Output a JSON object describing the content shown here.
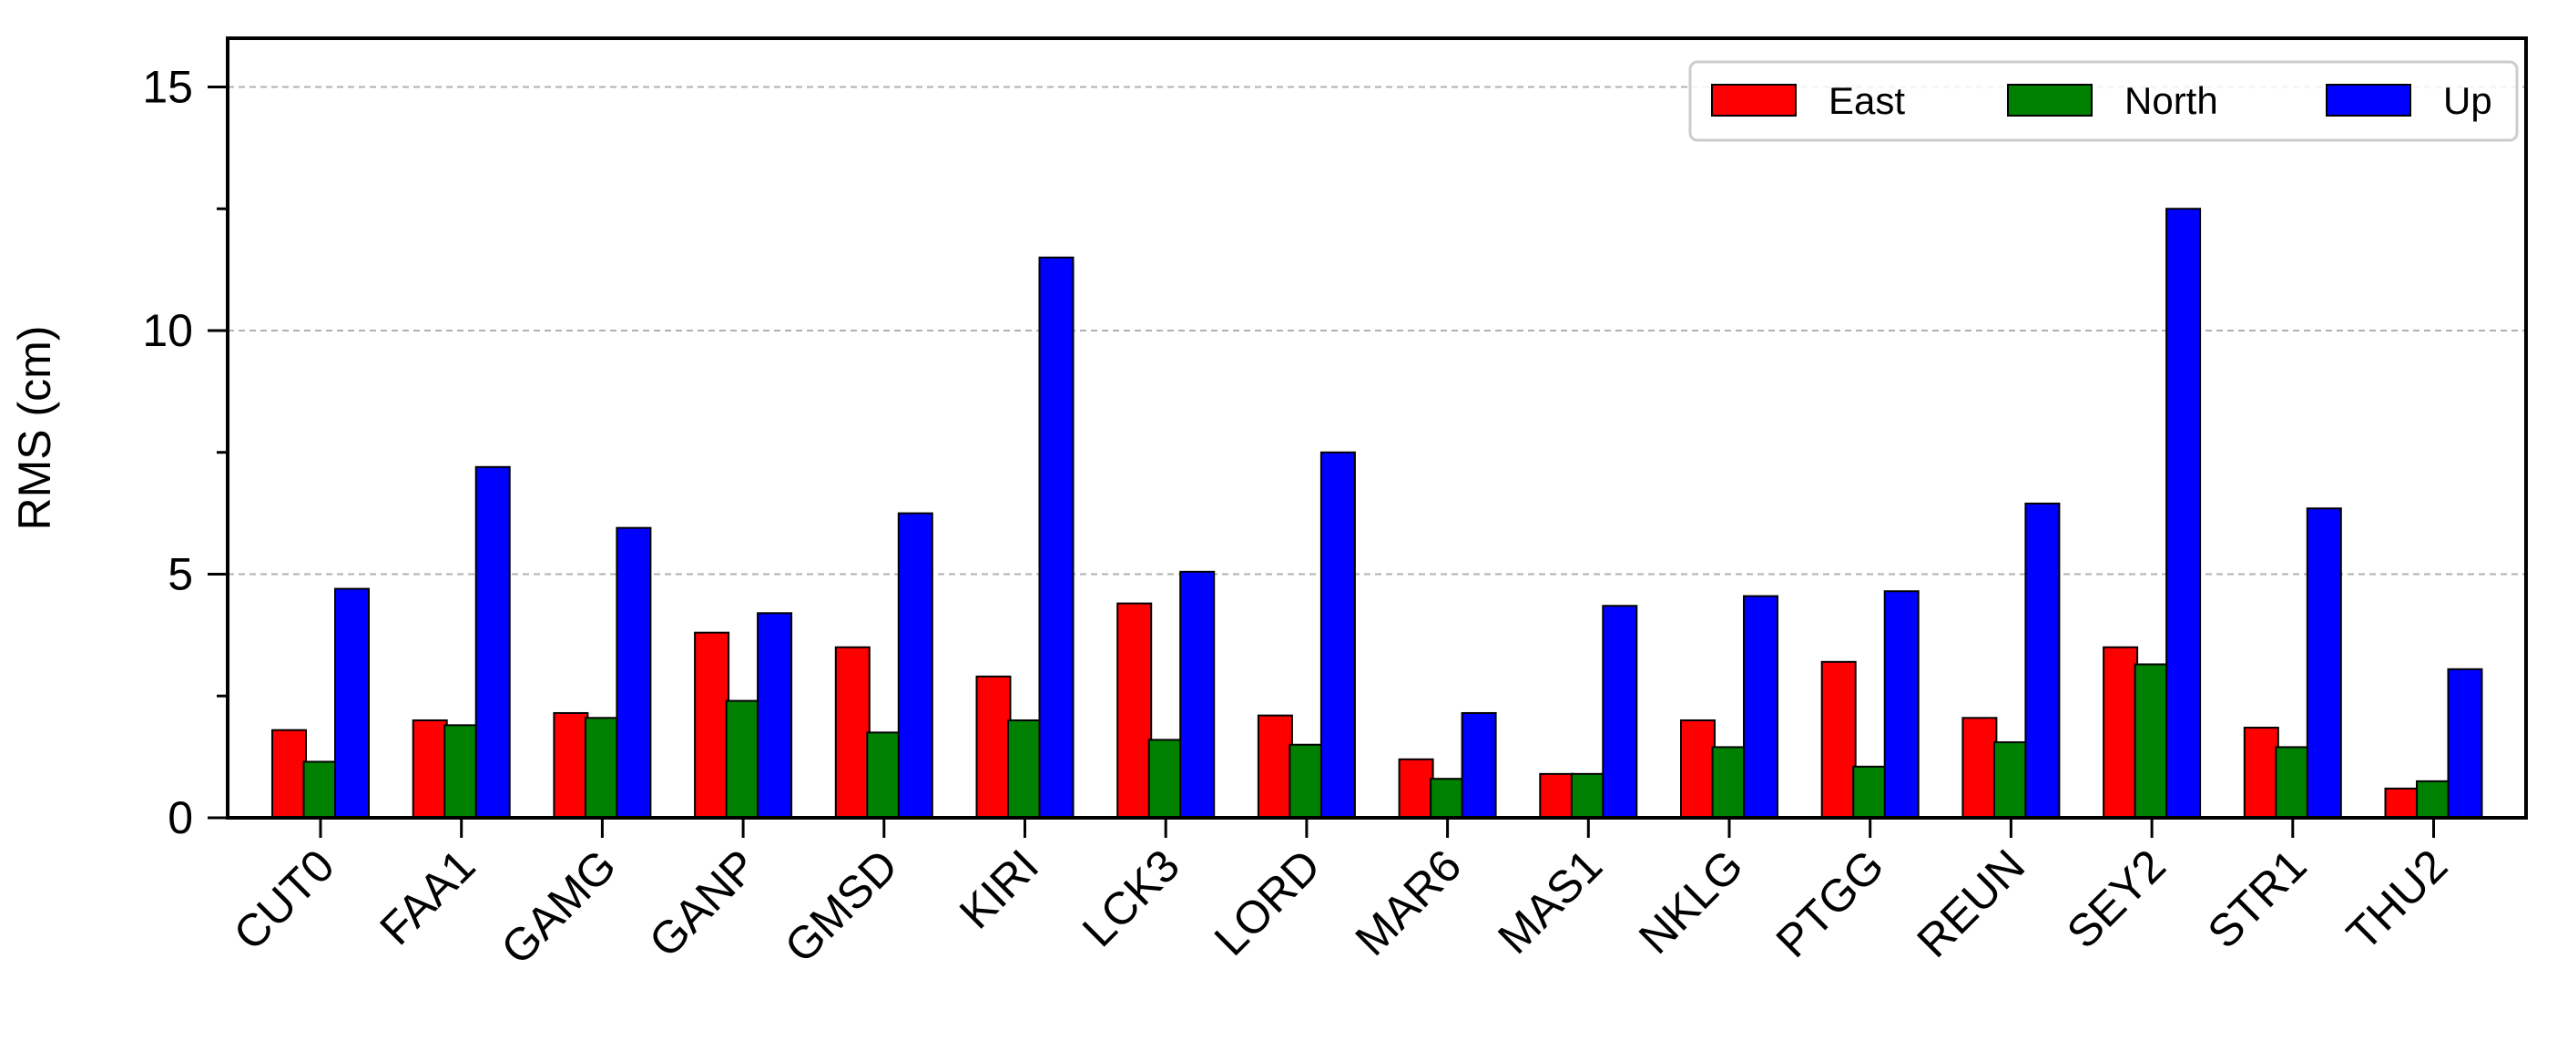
{
  "chart_data": {
    "type": "bar",
    "title": "",
    "xlabel": "",
    "ylabel": "RMS (cm)",
    "ylim": [
      0,
      16
    ],
    "yticks": [
      0,
      5,
      10,
      15
    ],
    "grid": "horizontal dashed at major y ticks",
    "legend_position": "top-right",
    "categories": [
      "CUT0",
      "FAA1",
      "GAMG",
      "GANP",
      "GMSD",
      "KIRI",
      "LCK3",
      "LORD",
      "MAR6",
      "MAS1",
      "NKLG",
      "PTGG",
      "REUN",
      "SEY2",
      "STR1",
      "THU2"
    ],
    "series": [
      {
        "name": "East",
        "color": "#ff0000",
        "values": [
          1.8,
          2.0,
          2.15,
          3.8,
          3.5,
          2.9,
          4.4,
          2.1,
          1.2,
          0.9,
          2.0,
          3.2,
          2.05,
          3.5,
          1.85,
          0.6
        ]
      },
      {
        "name": "North",
        "color": "#008000",
        "values": [
          1.15,
          1.9,
          2.05,
          2.4,
          1.75,
          2.0,
          1.6,
          1.5,
          0.8,
          0.9,
          1.45,
          1.05,
          1.55,
          3.15,
          1.45,
          0.75
        ]
      },
      {
        "name": "Up",
        "color": "#0000ff",
        "values": [
          4.7,
          7.2,
          5.95,
          4.2,
          6.25,
          11.5,
          5.05,
          7.5,
          2.15,
          4.35,
          4.55,
          4.65,
          6.45,
          12.5,
          6.35,
          3.05
        ]
      }
    ]
  }
}
